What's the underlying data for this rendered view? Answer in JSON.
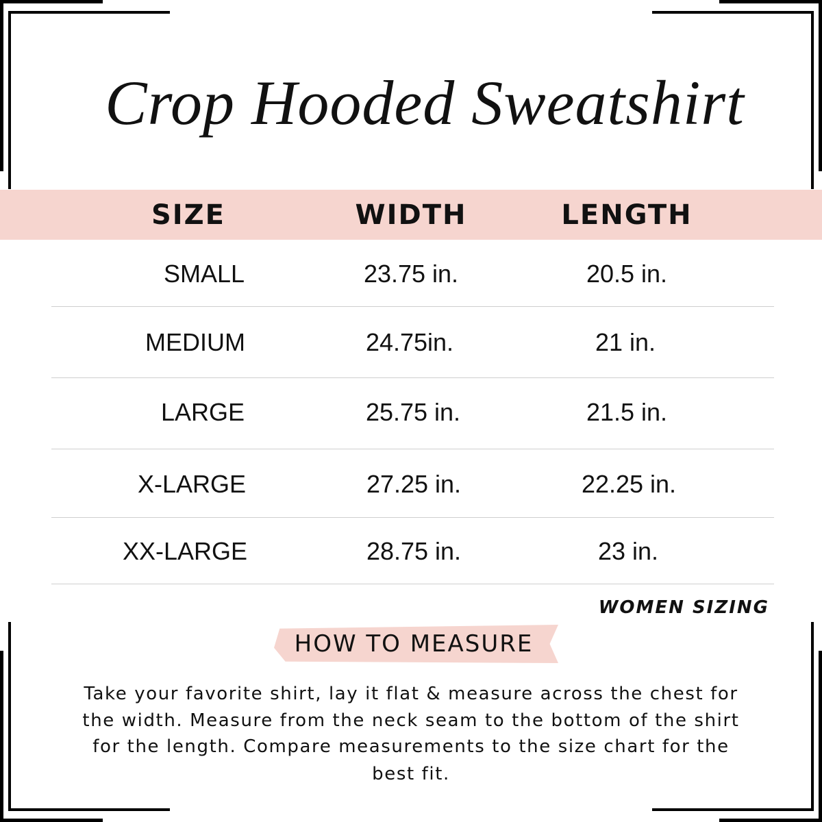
{
  "header": {
    "title": "Crop Hooded Sweatshirt"
  },
  "table": {
    "columns": [
      "SIZE",
      "WIDTH",
      "LENGTH"
    ],
    "rows": [
      [
        "SMALL",
        "23.75 in.",
        "20.5 in."
      ],
      [
        "MEDIUM",
        "24.75in.",
        "21 in."
      ],
      [
        "LARGE",
        "25.75 in.",
        "21.5 in."
      ],
      [
        "X-LARGE",
        "27.25 in.",
        "22.25 in."
      ],
      [
        "XX-LARGE",
        "28.75 in.",
        "23 in."
      ]
    ],
    "note": "WOMEN SIZING"
  },
  "measure": {
    "heading": "HOW TO MEASURE",
    "lines": [
      "Take your favorite shirt, lay it flat & measure across the chest for",
      "the width. Measure from the neck seam to the bottom of the shirt",
      "for the length. Compare measurements to the size chart for the",
      "best fit."
    ]
  }
}
